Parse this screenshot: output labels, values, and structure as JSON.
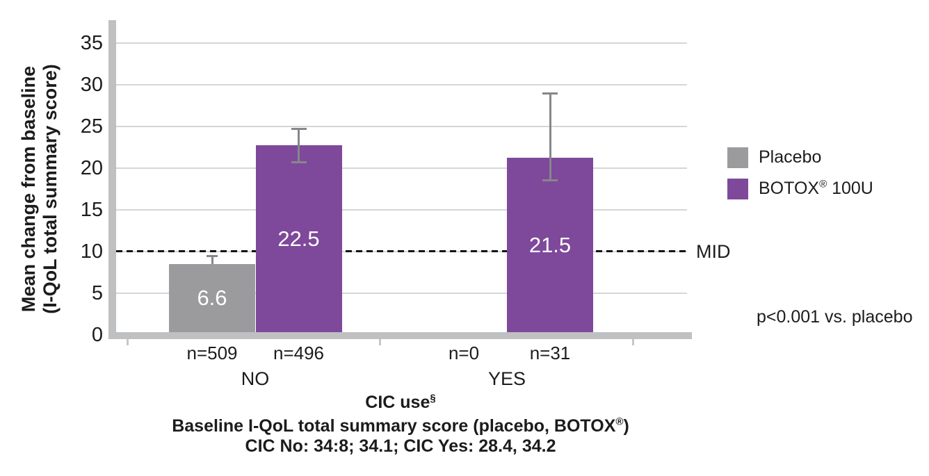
{
  "figure": {
    "y_axis_title_line1": "Mean change from baseline",
    "y_axis_title_line2": "(I-QoL total summary score)",
    "legend": {
      "botox_brand": "BOTOX",
      "botox_reg": "®",
      "botox_suffix": " 100U"
    },
    "captions": {
      "xlabel_text": "CIC use",
      "xlabel_sup": "§",
      "baseline_pre": "Baseline I-QoL total summary score (placebo, BOTOX",
      "baseline_sup": "®",
      "baseline_post": ")",
      "baseline_values": "CIC No: 34:8; 34.1; CIC Yes: 28.4, 34.2"
    }
  },
  "chart_data": {
    "type": "bar",
    "title": "",
    "ylabel": "Mean change from baseline (I-QoL total summary score)",
    "xlabel": "CIC use§",
    "ylim": [
      0,
      35
    ],
    "yticks": [
      0,
      5,
      10,
      15,
      20,
      25,
      30,
      35
    ],
    "grid": true,
    "legend_position": "right",
    "categories": [
      "NO",
      "YES"
    ],
    "series": [
      {
        "name": "Placebo",
        "color": "#9b9b9d",
        "values": [
          6.6,
          null
        ],
        "n": [
          509,
          0
        ]
      },
      {
        "name": "BOTOX® 100U",
        "color": "#7e489b",
        "values": [
          22.5,
          21.5
        ],
        "n": [
          496,
          31
        ]
      }
    ],
    "bars": [
      {
        "group": "NO",
        "series_key": "placebo",
        "value": 6.6,
        "label": "6.6",
        "n": "n=509",
        "err_lo": 8.5,
        "err_hi": 9.45,
        "err_caps": "top",
        "drawn_top": 8.5
      },
      {
        "group": "NO",
        "series_key": "botox",
        "value": 22.5,
        "label": "22.5",
        "n": "n=496",
        "err_lo": 20.7,
        "err_hi": 24.7,
        "err_caps": "both",
        "drawn_top": 22.7
      },
      {
        "group": "YES",
        "series_key": "placebo",
        "value": null,
        "label": null,
        "n": "n=0",
        "err_lo": null,
        "err_hi": null,
        "err_caps": "none",
        "drawn_top": null
      },
      {
        "group": "YES",
        "series_key": "botox",
        "value": 21.5,
        "label": "21.5",
        "n": "n=31",
        "err_lo": 18.6,
        "err_hi": 29.0,
        "err_caps": "both",
        "drawn_top": 21.2
      }
    ],
    "reference_line": {
      "value": 10,
      "label": "MID"
    },
    "annotation": "p<0.001 vs. placebo",
    "footnotes": [
      "CIC use§",
      "Baseline I-QoL total summary score (placebo, BOTOX®)",
      "CIC No: 34:8; 34.1; CIC Yes: 28.4, 34.2"
    ]
  },
  "colors": {
    "placebo": "#9b9b9d",
    "botox": "#7e489b",
    "axis": "#bfc0c2",
    "grid": "#d5d6d8",
    "error": "#85878a",
    "xtick": "#c6c7c9",
    "text": "#1c1c1e",
    "reference_line": "#141414",
    "bar_value_text": "#ffffff"
  }
}
